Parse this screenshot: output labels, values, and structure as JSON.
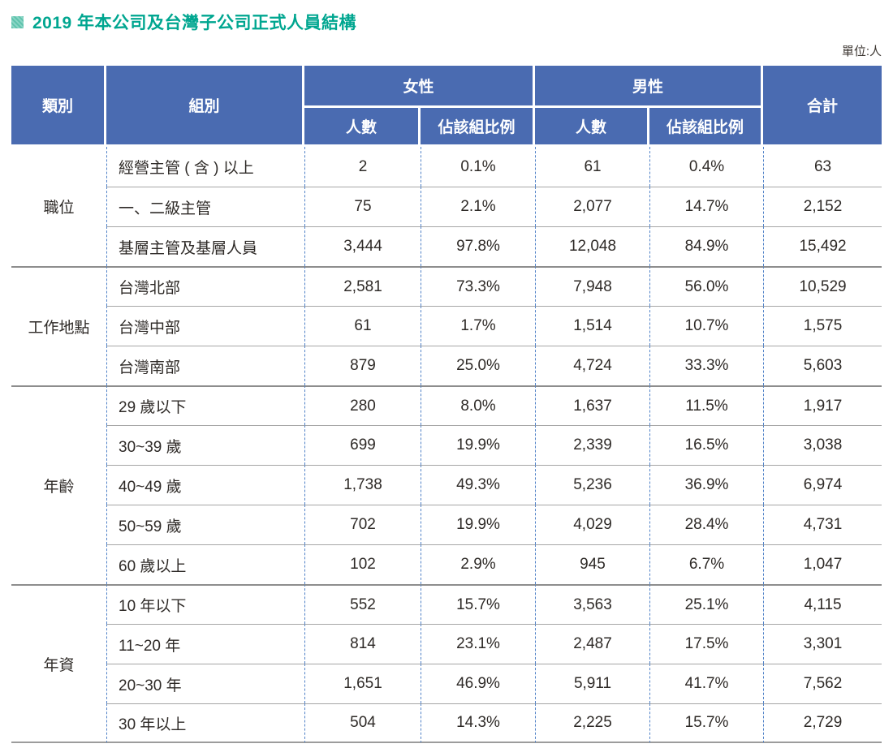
{
  "page": {
    "title": "2019 年本公司及台灣子公司正式人員結構",
    "unit_label": "單位:人"
  },
  "colors": {
    "title_teal": "#00a690",
    "header_blue": "#4a6bb1",
    "dashed_divider_blue": "#4f81c7",
    "row_line_gray": "#a6a6a6",
    "group_line_gray": "#8d8d8d"
  },
  "icons": {
    "title_bullet": "hatched-square-icon"
  },
  "table": {
    "headers": {
      "category": "類別",
      "group": "組別",
      "female": "女性",
      "male": "男性",
      "total": "合計",
      "count": "人數",
      "ratio": "佔該組比例"
    },
    "groups": [
      {
        "category": "職位",
        "rows": [
          {
            "label": "經營主管 ( 含 ) 以上",
            "f_count": "2",
            "f_ratio": "0.1%",
            "m_count": "61",
            "m_ratio": "0.4%",
            "total": "63"
          },
          {
            "label": "一、二級主管",
            "f_count": "75",
            "f_ratio": "2.1%",
            "m_count": "2,077",
            "m_ratio": "14.7%",
            "total": "2,152"
          },
          {
            "label": "基層主管及基層人員",
            "f_count": "3,444",
            "f_ratio": "97.8%",
            "m_count": "12,048",
            "m_ratio": "84.9%",
            "total": "15,492"
          }
        ]
      },
      {
        "category": "工作地點",
        "rows": [
          {
            "label": "台灣北部",
            "f_count": "2,581",
            "f_ratio": "73.3%",
            "m_count": "7,948",
            "m_ratio": "56.0%",
            "total": "10,529"
          },
          {
            "label": "台灣中部",
            "f_count": "61",
            "f_ratio": "1.7%",
            "m_count": "1,514",
            "m_ratio": "10.7%",
            "total": "1,575"
          },
          {
            "label": "台灣南部",
            "f_count": "879",
            "f_ratio": "25.0%",
            "m_count": "4,724",
            "m_ratio": "33.3%",
            "total": "5,603"
          }
        ]
      },
      {
        "category": "年齡",
        "rows": [
          {
            "label": "29 歲以下",
            "f_count": "280",
            "f_ratio": "8.0%",
            "m_count": "1,637",
            "m_ratio": "11.5%",
            "total": "1,917"
          },
          {
            "label": "30~39 歲",
            "f_count": "699",
            "f_ratio": "19.9%",
            "m_count": "2,339",
            "m_ratio": "16.5%",
            "total": "3,038"
          },
          {
            "label": "40~49 歲",
            "f_count": "1,738",
            "f_ratio": "49.3%",
            "m_count": "5,236",
            "m_ratio": "36.9%",
            "total": "6,974"
          },
          {
            "label": "50~59 歲",
            "f_count": "702",
            "f_ratio": "19.9%",
            "m_count": "4,029",
            "m_ratio": "28.4%",
            "total": "4,731"
          },
          {
            "label": "60 歲以上",
            "f_count": "102",
            "f_ratio": "2.9%",
            "m_count": "945",
            "m_ratio": "6.7%",
            "total": "1,047"
          }
        ]
      },
      {
        "category": "年資",
        "rows": [
          {
            "label": "10 年以下",
            "f_count": "552",
            "f_ratio": "15.7%",
            "m_count": "3,563",
            "m_ratio": "25.1%",
            "total": "4,115"
          },
          {
            "label": "11~20 年",
            "f_count": "814",
            "f_ratio": "23.1%",
            "m_count": "2,487",
            "m_ratio": "17.5%",
            "total": "3,301"
          },
          {
            "label": "20~30 年",
            "f_count": "1,651",
            "f_ratio": "46.9%",
            "m_count": "5,911",
            "m_ratio": "41.7%",
            "total": "7,562"
          },
          {
            "label": "30 年以上",
            "f_count": "504",
            "f_ratio": "14.3%",
            "m_count": "2,225",
            "m_ratio": "15.7%",
            "total": "2,729"
          }
        ]
      }
    ]
  }
}
